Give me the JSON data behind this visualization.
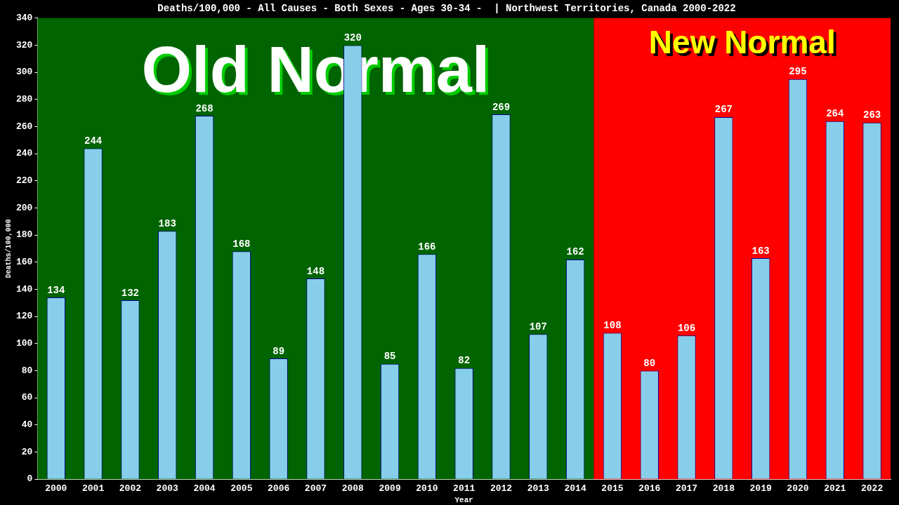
{
  "chart_data": {
    "type": "bar",
    "title": "Deaths/100,000 - All Causes - Both Sexes - Ages 30-34 -  | Northwest Territories, Canada 2000-2022",
    "xlabel": "Year",
    "ylabel": "Deaths/100,000",
    "categories": [
      "2000",
      "2001",
      "2002",
      "2003",
      "2004",
      "2005",
      "2006",
      "2007",
      "2008",
      "2009",
      "2010",
      "2011",
      "2012",
      "2013",
      "2014",
      "2015",
      "2016",
      "2017",
      "2018",
      "2019",
      "2020",
      "2021",
      "2022"
    ],
    "values": [
      134,
      244,
      132,
      183,
      268,
      168,
      89,
      148,
      320,
      85,
      166,
      82,
      269,
      107,
      162,
      108,
      80,
      106,
      267,
      163,
      295,
      264,
      263
    ],
    "color": "#87ceeb",
    "data_labels": true,
    "grid": false,
    "legend": false,
    "ylim": [
      0,
      340
    ],
    "yticks": [
      0,
      20,
      40,
      60,
      80,
      100,
      120,
      140,
      160,
      180,
      200,
      220,
      240,
      260,
      280,
      300,
      320,
      340
    ],
    "bands": [
      {
        "axis": "x",
        "from": "2000",
        "to": "2014",
        "label": "Old Normal",
        "color": "#006400"
      },
      {
        "axis": "x",
        "from": "2015",
        "to": "2022",
        "label": "New Normal",
        "color": "#ff0000"
      }
    ]
  }
}
